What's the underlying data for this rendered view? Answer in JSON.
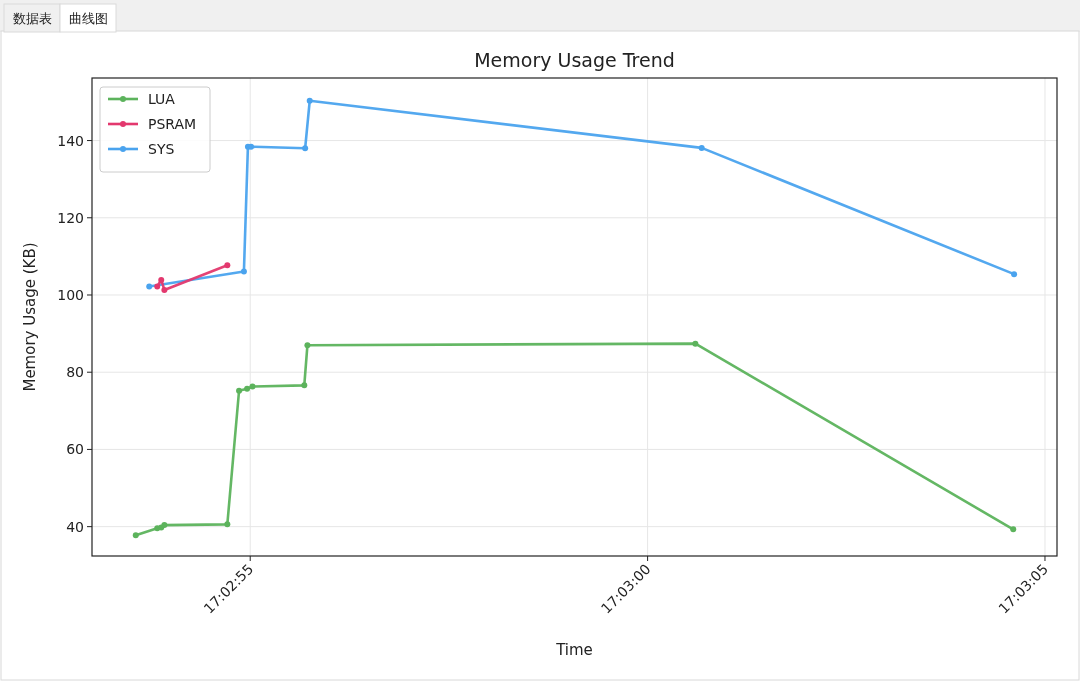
{
  "chart_data": {
    "type": "line",
    "title": "Memory Usage Trend",
    "xlabel": "Time",
    "ylabel": "Memory Usage (KB)",
    "annotations": [
      "数据表",
      "曲线图"
    ],
    "xlim": [
      17.048058,
      17.051431
    ],
    "ylim": [
      32.4,
      156.2
    ],
    "xticks": [
      {
        "value": 17.048611,
        "label": "17:02:55"
      },
      {
        "value": 17.05,
        "label": "17:03:00"
      },
      {
        "value": 17.051389,
        "label": "17:03:05"
      }
    ],
    "yticks": [
      40,
      60,
      80,
      100,
      120,
      140
    ],
    "grid": true,
    "legend": "top left",
    "marker": "circle",
    "line_style": "solid",
    "series": [
      {
        "name": "LUA",
        "color": "#5cb35c",
        "x": [
          17.048211,
          17.048286,
          17.0483,
          17.048311,
          17.048531,
          17.048572,
          17.0486,
          17.048619,
          17.0488,
          17.048811,
          17.050167,
          17.051278
        ],
        "values": [
          37.8,
          39.6,
          39.8,
          40.4,
          40.6,
          75.2,
          75.7,
          76.3,
          76.6,
          87.0,
          87.4,
          39.3
        ]
      },
      {
        "name": "PSRAM",
        "color": "#e3386e",
        "x": [
          17.048286,
          17.0483,
          17.048311,
          17.048531
        ],
        "values": [
          102.2,
          103.9,
          101.3,
          107.7
        ]
      },
      {
        "name": "SYS",
        "color": "#4aa3ee",
        "x": [
          17.048258,
          17.048589,
          17.048603,
          17.048614,
          17.048803,
          17.048819,
          17.050189,
          17.051281
        ],
        "values": [
          102.2,
          106.1,
          138.4,
          138.4,
          138.0,
          150.3,
          138.1,
          105.4
        ]
      }
    ]
  }
}
